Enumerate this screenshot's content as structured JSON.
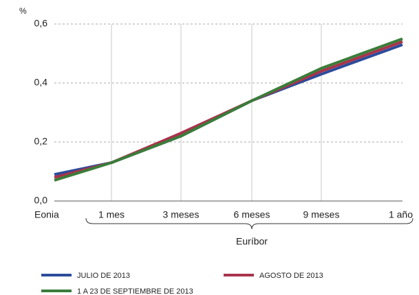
{
  "chart_data": {
    "type": "line",
    "y_unit_label": "%",
    "categories": [
      "Eonia",
      "1 mes",
      "3 meses",
      "6 meses",
      "9 meses",
      "1 año"
    ],
    "annotation": "Euríbor",
    "series": [
      {
        "name": "JULIO DE 2013",
        "color": "#2b4c9b",
        "values": [
          0.09,
          0.13,
          0.22,
          0.34,
          0.43,
          0.53
        ]
      },
      {
        "name": "AGOSTO DE 2013",
        "color": "#a8334b",
        "values": [
          0.08,
          0.13,
          0.23,
          0.34,
          0.44,
          0.54
        ]
      },
      {
        "name": "1 A 23 DE SEPTIEMBRE DE 2013",
        "color": "#3a7d3a",
        "values": [
          0.07,
          0.13,
          0.22,
          0.34,
          0.45,
          0.55
        ]
      }
    ],
    "ylim": [
      0,
      0.6
    ],
    "yticks": [
      {
        "value": 0,
        "label": "0,0"
      },
      {
        "value": 0.2,
        "label": "0,2"
      },
      {
        "value": 0.4,
        "label": "0,4"
      },
      {
        "value": 0.6,
        "label": "0,6"
      }
    ],
    "grid": true
  }
}
